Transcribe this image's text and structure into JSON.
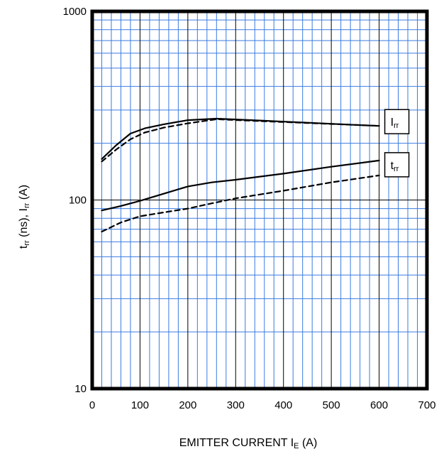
{
  "chart_data": {
    "type": "line",
    "xlabel": {
      "main": "EMITTER CURRENT   I",
      "sub": "E",
      "unit": "   (A)"
    },
    "ylabel": {
      "p1": "t",
      "p1_sub": "rr",
      "p2": "   (ns), I",
      "p2_sub": "rr",
      "p3": "   (A)"
    },
    "xlim": [
      0,
      700
    ],
    "ylim": [
      10,
      1000
    ],
    "yscale": "log",
    "grid": true,
    "x_ticks": [
      "0",
      "100",
      "200",
      "300",
      "400",
      "500",
      "600",
      "700"
    ],
    "y_ticks": [
      "10",
      "100",
      "1000"
    ],
    "series": [
      {
        "label": "I",
        "label_sub": "rr",
        "style": "solid",
        "x": [
          20,
          50,
          80,
          110,
          150,
          200,
          260,
          350,
          450,
          550,
          600
        ],
        "y": [
          165,
          195,
          225,
          240,
          252,
          265,
          270,
          264,
          257,
          250,
          247
        ]
      },
      {
        "label": "",
        "label_sub": "",
        "style": "dashed",
        "x": [
          20,
          50,
          80,
          110,
          150,
          200,
          260,
          350,
          450,
          550,
          600
        ],
        "y": [
          160,
          185,
          210,
          228,
          242,
          255,
          268,
          262,
          256,
          250,
          247
        ]
      },
      {
        "label": "t",
        "label_sub": "rr",
        "style": "solid",
        "x": [
          20,
          60,
          100,
          150,
          200,
          250,
          300,
          400,
          500,
          600
        ],
        "y": [
          88,
          93,
          99,
          108,
          118,
          124,
          128,
          138,
          150,
          162
        ]
      },
      {
        "label": "",
        "label_sub": "",
        "style": "dashed",
        "x": [
          20,
          60,
          100,
          150,
          200,
          250,
          300,
          400,
          500,
          600
        ],
        "y": [
          68,
          76,
          82,
          86,
          90,
          96,
          102,
          112,
          124,
          135
        ]
      }
    ],
    "annotations": [
      {
        "text": "I",
        "sub": "rr",
        "series": 0
      },
      {
        "text": "t",
        "sub": "rr",
        "series": 2
      }
    ]
  }
}
